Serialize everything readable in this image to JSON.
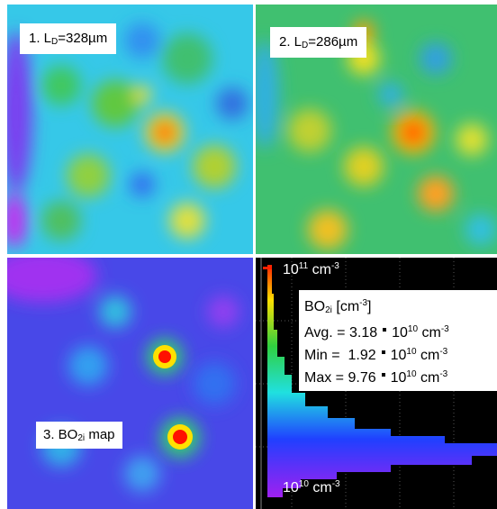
{
  "panels": [
    {
      "label": {
        "prefix": "1.  L",
        "sub": "D",
        "suffix": "=328µm"
      }
    },
    {
      "label": {
        "prefix": "2.  L",
        "sub": "D",
        "suffix": "=286µm"
      }
    },
    {
      "label": {
        "prefix": "3. BO",
        "sub": "2i",
        "suffix": " map"
      }
    }
  ],
  "histogram": {
    "top_label": {
      "base": "10",
      "exp": "11",
      "unit": "cm",
      "unit_exp": "-3"
    },
    "bottom_label": {
      "base": "10",
      "exp": "10",
      "unit": "cm",
      "unit_exp": "-3"
    },
    "legend": {
      "title": {
        "name": "BO",
        "sub": "2i",
        "unit": " [cm",
        "unit_exp": "-3",
        "close": "]"
      },
      "rows": [
        {
          "label": "Avg. = ",
          "value": "3.18",
          "base": "10",
          "exp": "10",
          "unit": "cm",
          "unit_exp": "-3"
        },
        {
          "label": "Min =  ",
          "value": "1.92",
          "base": "10",
          "exp": "10",
          "unit": "cm",
          "unit_exp": "-3"
        },
        {
          "label": "Max = ",
          "value": "9.76",
          "base": "10",
          "exp": "10",
          "unit": "cm",
          "unit_exp": "-3"
        }
      ]
    }
  }
}
